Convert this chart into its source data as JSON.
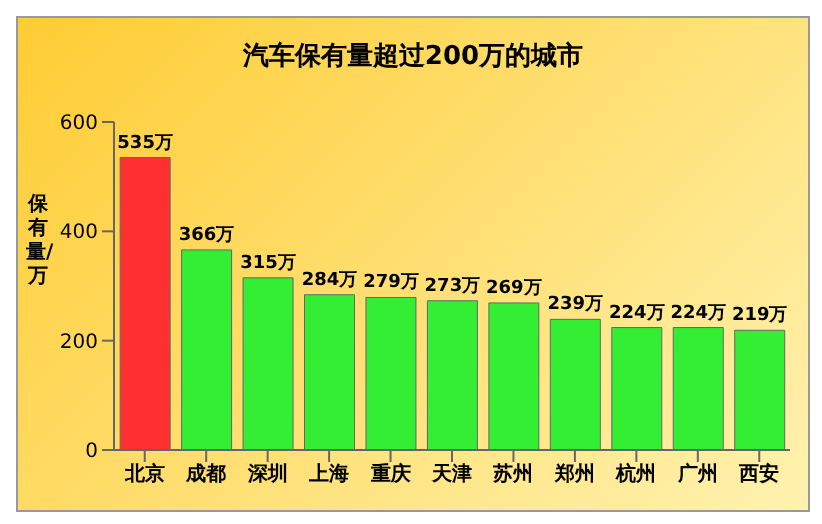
{
  "chart_data": {
    "type": "bar",
    "title": "汽车保有量超过200万的城市",
    "ylabel": "保有量/万",
    "categories": [
      "北京",
      "成都",
      "深圳",
      "上海",
      "重庆",
      "天津",
      "苏州",
      "郑州",
      "杭州",
      "广州",
      "西安"
    ],
    "values": [
      535,
      366,
      315,
      284,
      279,
      273,
      269,
      239,
      224,
      224,
      219
    ],
    "colors": [
      "#ff3030",
      "#33ee33",
      "#33ee33",
      "#33ee33",
      "#33ee33",
      "#33ee33",
      "#33ee33",
      "#33ee33",
      "#33ee33",
      "#33ee33",
      "#33ee33"
    ],
    "value_labels": [
      "535万",
      "366万",
      "315万",
      "284万",
      "279万",
      "273万",
      "269万",
      "239万",
      "224万",
      "224万",
      "219万"
    ],
    "ylim": [
      0,
      600
    ],
    "yticks": [
      0,
      200,
      400,
      600
    ],
    "grid": false
  }
}
